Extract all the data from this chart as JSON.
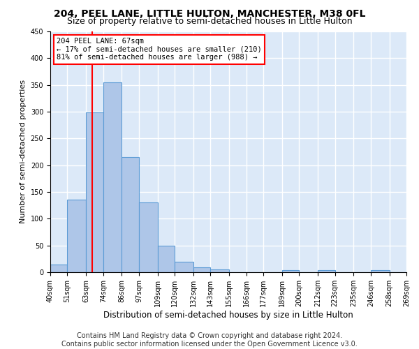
{
  "title1": "204, PEEL LANE, LITTLE HULTON, MANCHESTER, M38 0FL",
  "title2": "Size of property relative to semi-detached houses in Little Hulton",
  "xlabel": "Distribution of semi-detached houses by size in Little Hulton",
  "ylabel": "Number of semi-detached properties",
  "footer1": "Contains HM Land Registry data © Crown copyright and database right 2024.",
  "footer2": "Contains public sector information licensed under the Open Government Licence v3.0.",
  "annotation_line1": "204 PEEL LANE: 67sqm",
  "annotation_line2": "← 17% of semi-detached houses are smaller (210)",
  "annotation_line3": "81% of semi-detached houses are larger (988) →",
  "property_size": 67,
  "bar_edges": [
    40,
    51,
    63,
    74,
    86,
    97,
    109,
    120,
    132,
    143,
    155,
    166,
    177,
    189,
    200,
    212,
    223,
    235,
    246,
    258,
    269
  ],
  "bar_heights": [
    15,
    136,
    299,
    355,
    215,
    130,
    50,
    20,
    9,
    5,
    0,
    0,
    0,
    4,
    0,
    4,
    0,
    0,
    4,
    0,
    0
  ],
  "bar_color": "#aec6e8",
  "bar_edgecolor": "#5b9bd5",
  "bar_linewidth": 0.8,
  "redline_color": "red",
  "redline_linewidth": 1.5,
  "annotation_box_edgecolor": "red",
  "annotation_box_facecolor": "white",
  "ylim": [
    0,
    450
  ],
  "yticks": [
    0,
    50,
    100,
    150,
    200,
    250,
    300,
    350,
    400,
    450
  ],
  "background_color": "#dce9f8",
  "grid_color": "white",
  "title1_fontsize": 10,
  "title2_fontsize": 9,
  "xlabel_fontsize": 8.5,
  "ylabel_fontsize": 8,
  "tick_fontsize": 7,
  "footer_fontsize": 7,
  "annotation_fontsize": 7.5
}
